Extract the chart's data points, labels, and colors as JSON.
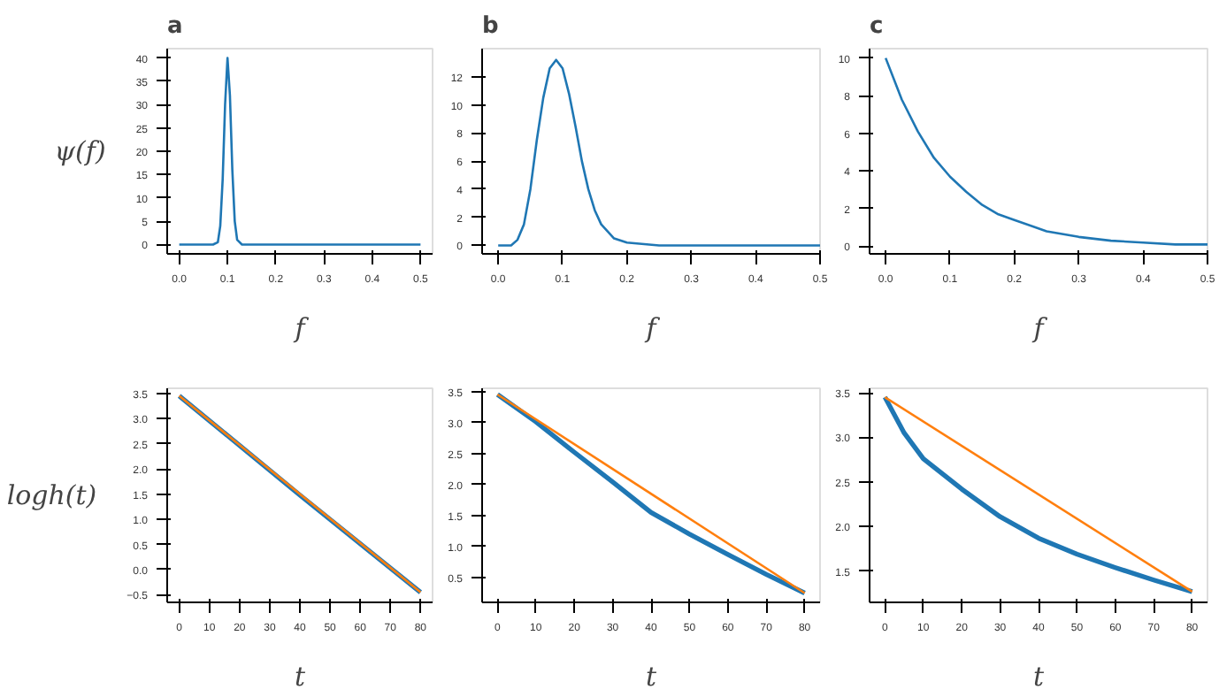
{
  "chart_data": [
    {
      "type": "line",
      "title": "a",
      "ylabel": "ψ(f)",
      "xlabel": "f",
      "xlim": [
        -0.025,
        0.525
      ],
      "ylim": [
        -2,
        42
      ],
      "xticks": [
        {
          "value": 0,
          "label": "0.0"
        },
        {
          "value": 0.1,
          "label": "0.1"
        },
        {
          "value": 0.2,
          "label": "0.2"
        },
        {
          "value": 0.3,
          "label": "0.3"
        },
        {
          "value": 0.4,
          "label": "0.4"
        },
        {
          "value": 0.5,
          "label": "0.5"
        }
      ],
      "yticks": [
        0,
        5,
        10,
        15,
        20,
        25,
        30,
        35,
        40
      ],
      "grid": false,
      "series": [
        {
          "color": "#1f77b4",
          "x": [
            0,
            0.07,
            0.08,
            0.085,
            0.09,
            0.095,
            0.1,
            0.105,
            0.11,
            0.115,
            0.12,
            0.13,
            0.5
          ],
          "values": [
            0,
            0,
            0.5,
            4,
            14,
            30,
            40,
            32,
            16,
            5,
            1,
            0,
            0
          ]
        }
      ]
    },
    {
      "type": "line",
      "title": "b",
      "xlabel": "f",
      "xlim": [
        -0.025,
        0.5
      ],
      "ylim": [
        -0.6,
        14
      ],
      "xticks": [
        {
          "value": 0,
          "label": "0.0"
        },
        {
          "value": 0.1,
          "label": "0.1"
        },
        {
          "value": 0.2,
          "label": "0.2"
        },
        {
          "value": 0.3,
          "label": "0.3"
        },
        {
          "value": 0.4,
          "label": "0.4"
        },
        {
          "value": 0.5,
          "label": "0.5"
        }
      ],
      "yticks": [
        0,
        2,
        4,
        6,
        8,
        10,
        12
      ],
      "grid": false,
      "series": [
        {
          "color": "#1f77b4",
          "x": [
            0,
            0.02,
            0.03,
            0.04,
            0.05,
            0.06,
            0.07,
            0.08,
            0.09,
            0.1,
            0.11,
            0.12,
            0.13,
            0.14,
            0.15,
            0.16,
            0.18,
            0.2,
            0.25,
            0.5
          ],
          "values": [
            0,
            0,
            0.4,
            1.5,
            4,
            7.5,
            10.5,
            12.6,
            13.2,
            12.6,
            10.8,
            8.5,
            6,
            4,
            2.5,
            1.5,
            0.5,
            0.2,
            0,
            0
          ]
        }
      ]
    },
    {
      "type": "line",
      "title": "c",
      "xlabel": "f",
      "xlim": [
        -0.025,
        0.5
      ],
      "ylim": [
        -0.4,
        10.5
      ],
      "xticks": [
        {
          "value": 0,
          "label": "0.0"
        },
        {
          "value": 0.1,
          "label": "0.1"
        },
        {
          "value": 0.2,
          "label": "0.2"
        },
        {
          "value": 0.3,
          "label": "0.3"
        },
        {
          "value": 0.4,
          "label": "0.4"
        },
        {
          "value": 0.5,
          "label": "0.5"
        }
      ],
      "yticks": [
        0,
        2,
        4,
        6,
        8,
        10
      ],
      "grid": false,
      "series": [
        {
          "color": "#1f77b4",
          "x": [
            0,
            0.025,
            0.05,
            0.075,
            0.1,
            0.125,
            0.15,
            0.175,
            0.2,
            0.25,
            0.3,
            0.35,
            0.4,
            0.45,
            0.5
          ],
          "values": [
            10,
            7.8,
            6.1,
            4.7,
            3.7,
            2.9,
            2.2,
            1.7,
            1.4,
            0.8,
            0.5,
            0.3,
            0.2,
            0.1,
            0.1
          ]
        }
      ]
    },
    {
      "type": "line",
      "ylabel": "logh(t)",
      "xlabel": "t",
      "xlim": [
        -4,
        84
      ],
      "ylim": [
        -0.65,
        3.6
      ],
      "xticks": [
        0,
        10,
        20,
        30,
        40,
        50,
        60,
        70,
        80
      ],
      "yticks": [
        {
          "value": -0.5,
          "label": "−0.5"
        },
        {
          "value": 0,
          "label": "0.0"
        },
        {
          "value": 0.5,
          "label": "0.5"
        },
        {
          "value": 1,
          "label": "1.0"
        },
        {
          "value": 1.5,
          "label": "1.5"
        },
        {
          "value": 2,
          "label": "2.0"
        },
        {
          "value": 2.5,
          "label": "2.5"
        },
        {
          "value": 3,
          "label": "3.0"
        },
        {
          "value": 3.5,
          "label": "3.5"
        }
      ],
      "grid": false,
      "series": [
        {
          "color": "#1f77b4",
          "x": [
            0,
            40,
            80
          ],
          "values": [
            3.45,
            1.48,
            -0.45
          ]
        },
        {
          "color": "#ff7f0e",
          "x": [
            0,
            80
          ],
          "values": [
            3.45,
            -0.45
          ]
        }
      ]
    },
    {
      "type": "line",
      "xlabel": "t",
      "xlim": [
        -4,
        84
      ],
      "ylim": [
        0.1,
        3.55
      ],
      "xticks": [
        0,
        10,
        20,
        30,
        40,
        50,
        60,
        70,
        80
      ],
      "yticks": [
        {
          "value": 0.5,
          "label": "0.5"
        },
        {
          "value": 1,
          "label": "1.0"
        },
        {
          "value": 1.5,
          "label": "1.5"
        },
        {
          "value": 2,
          "label": "2.0"
        },
        {
          "value": 2.5,
          "label": "2.5"
        },
        {
          "value": 3,
          "label": "3.0"
        },
        {
          "value": 3.5,
          "label": "3.5"
        }
      ],
      "grid": false,
      "series": [
        {
          "color": "#1f77b4",
          "x": [
            0,
            10,
            20,
            30,
            40,
            50,
            60,
            70,
            80
          ],
          "values": [
            3.45,
            3.01,
            2.52,
            2.04,
            1.55,
            1.2,
            0.87,
            0.55,
            0.25
          ]
        },
        {
          "color": "#ff7f0e",
          "x": [
            0,
            80
          ],
          "values": [
            3.45,
            0.25
          ]
        }
      ]
    },
    {
      "type": "line",
      "xlabel": "t",
      "xlim": [
        -4,
        84
      ],
      "ylim": [
        1.15,
        3.55
      ],
      "xticks": [
        0,
        10,
        20,
        30,
        40,
        50,
        60,
        70,
        80
      ],
      "yticks": [
        {
          "value": 1.5,
          "label": "1.5"
        },
        {
          "value": 2,
          "label": "2.0"
        },
        {
          "value": 2.5,
          "label": "2.5"
        },
        {
          "value": 3,
          "label": "3.0"
        },
        {
          "value": 3.5,
          "label": "3.5"
        }
      ],
      "grid": false,
      "series": [
        {
          "color": "#1f77b4",
          "x": [
            0,
            5,
            10,
            20,
            30,
            40,
            50,
            60,
            70,
            80
          ],
          "values": [
            3.45,
            3.05,
            2.76,
            2.42,
            2.11,
            1.87,
            1.69,
            1.54,
            1.4,
            1.27
          ]
        },
        {
          "color": "#ff7f0e",
          "x": [
            0,
            80
          ],
          "values": [
            3.45,
            1.27
          ]
        }
      ]
    }
  ]
}
